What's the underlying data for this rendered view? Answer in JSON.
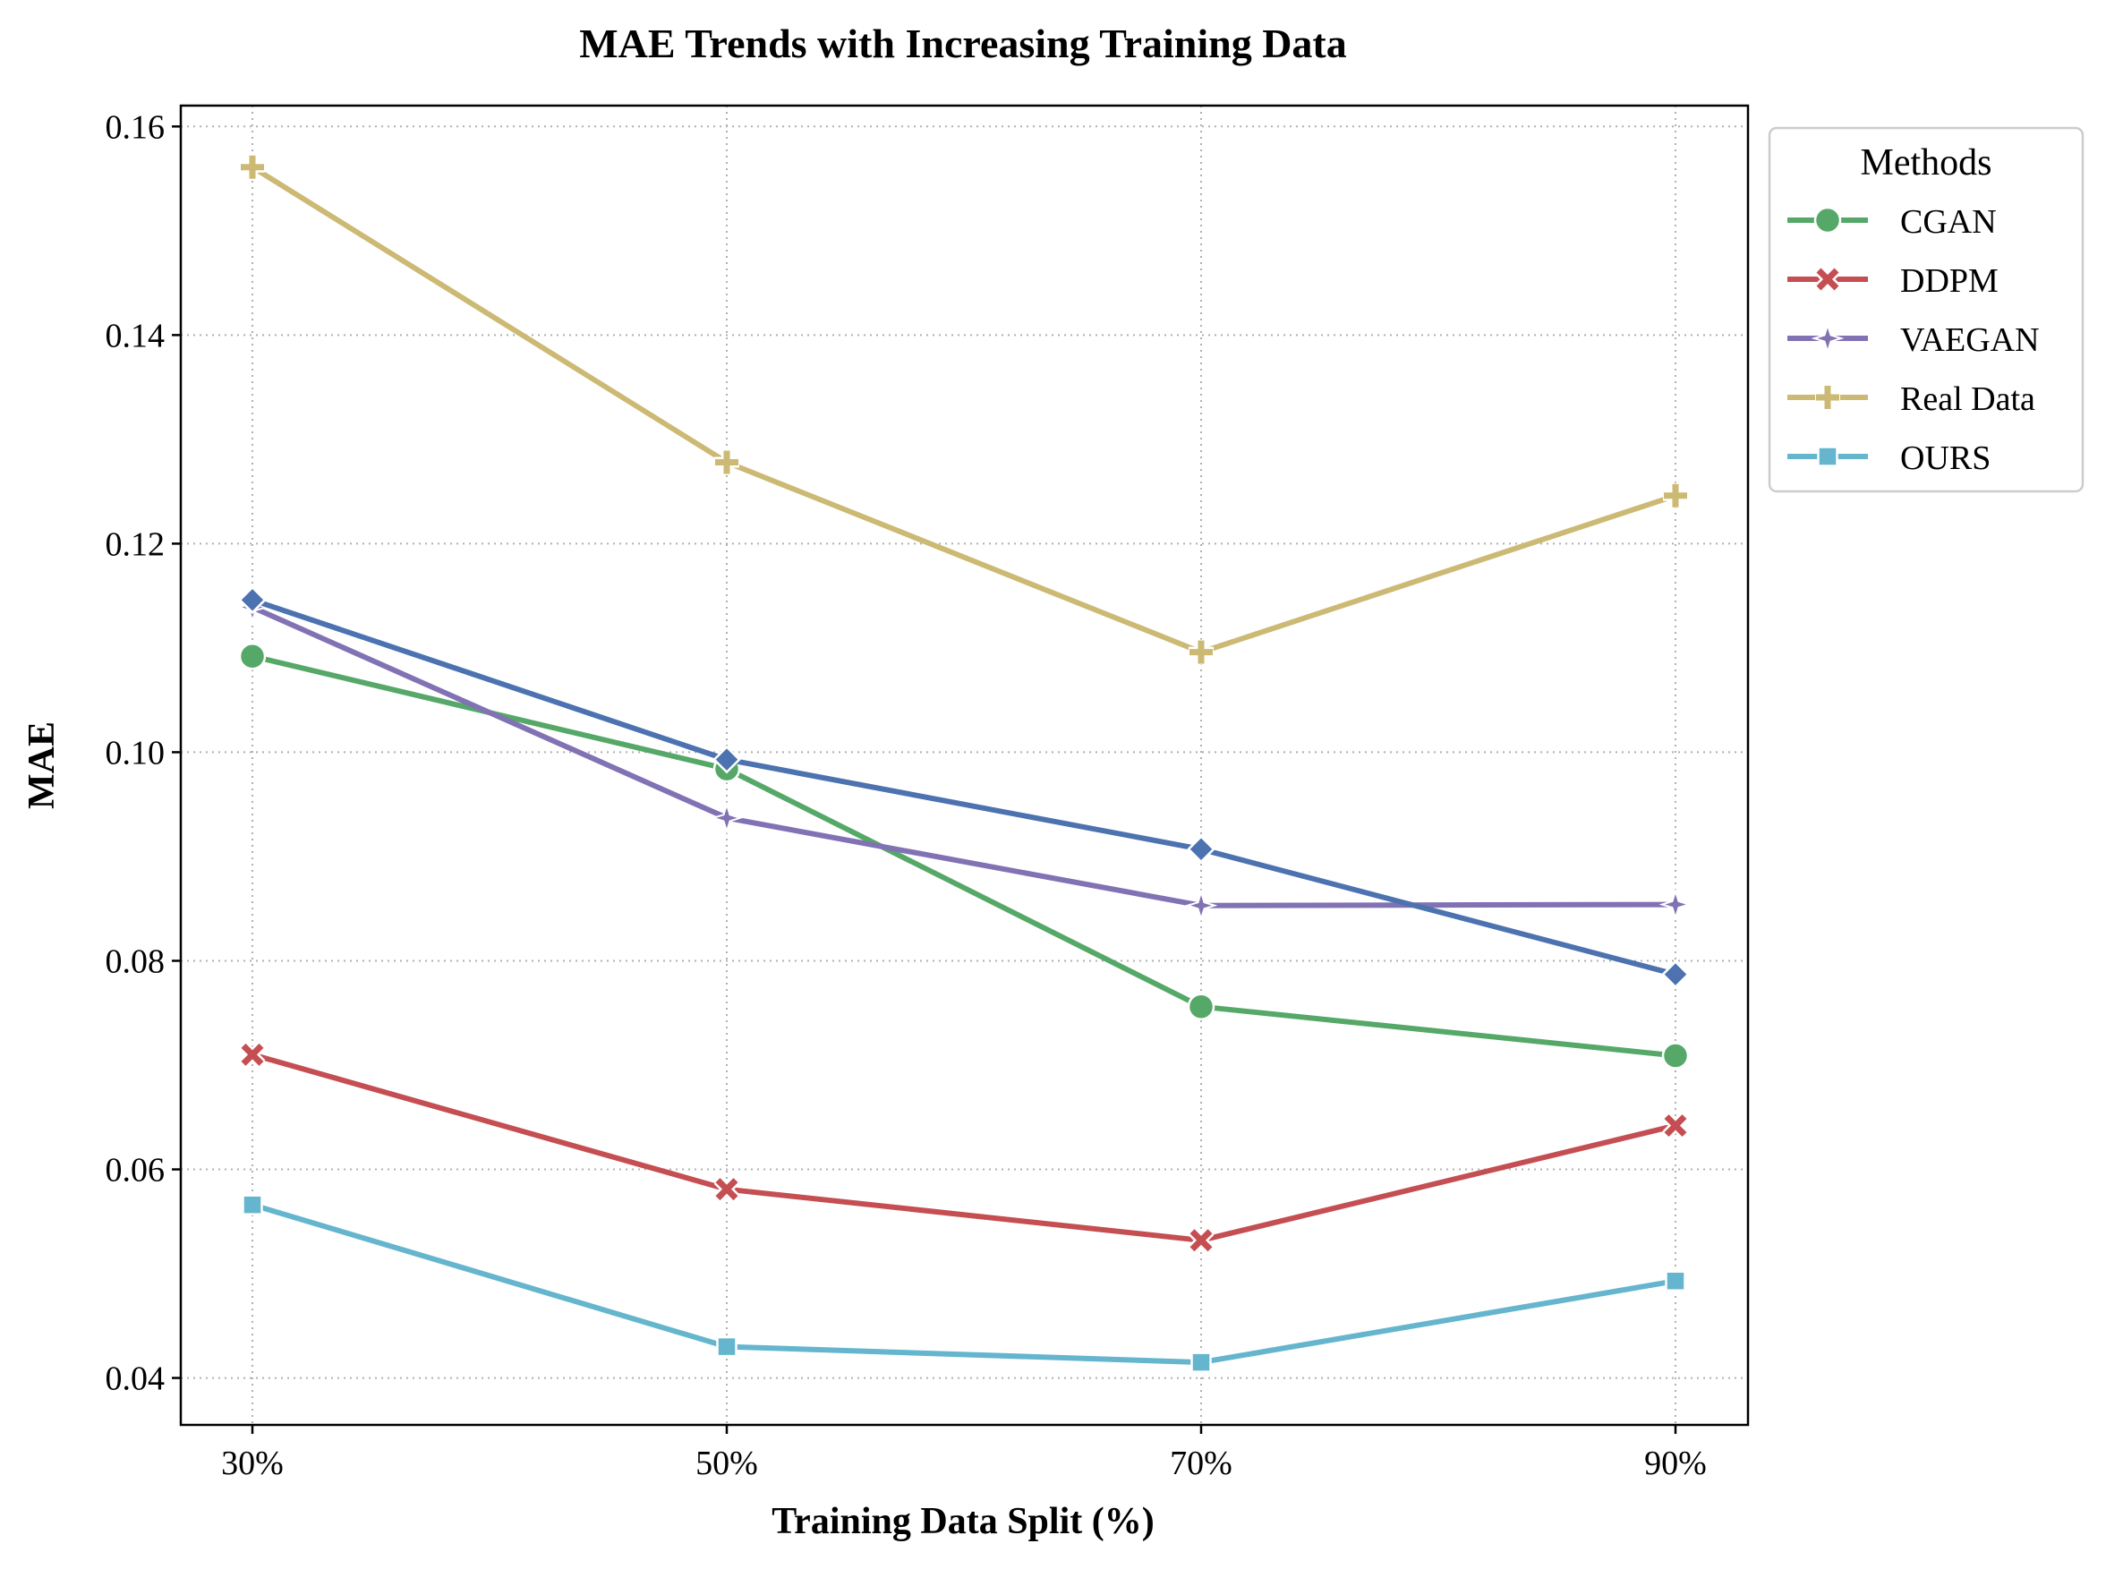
{
  "chart_data": {
    "type": "line",
    "title": "MAE Trends with Increasing Training Data",
    "xlabel": "Training Data Split (%)",
    "ylabel": "MAE",
    "categories": [
      "30%",
      "50%",
      "70%",
      "90%"
    ],
    "ylim": [
      0.0355,
      0.162
    ],
    "yticks": [
      0.04,
      0.06,
      0.08,
      0.1,
      0.12,
      0.14,
      0.16
    ],
    "ytick_labels": [
      "0.04",
      "0.06",
      "0.08",
      "0.10",
      "0.12",
      "0.14",
      "0.16"
    ],
    "grid": true,
    "legend": {
      "title": "Methods",
      "position": "outside-top-right"
    },
    "series": [
      {
        "name": "CGAN",
        "color": "#55a868",
        "marker": "circle",
        "values": [
          0.1092,
          0.0984,
          0.0756,
          0.0709
        ],
        "in_legend": true
      },
      {
        "name": "DDPM",
        "color": "#c44e52",
        "marker": "x",
        "values": [
          0.071,
          0.0581,
          0.0532,
          0.0642
        ],
        "in_legend": true
      },
      {
        "name": "VAEGAN",
        "color": "#8172b3",
        "marker": "star",
        "values": [
          0.1139,
          0.0937,
          0.0853,
          0.0854
        ],
        "in_legend": true
      },
      {
        "name": "Real Data",
        "color": "#ccb974",
        "marker": "plus",
        "values": [
          0.1561,
          0.1278,
          0.1096,
          0.1246
        ],
        "in_legend": true
      },
      {
        "name": "OURS",
        "color": "#64b5cd",
        "marker": "square",
        "values": [
          0.0566,
          0.043,
          0.0415,
          0.0493
        ],
        "in_legend": true
      },
      {
        "name": "",
        "color": "#4c72b0",
        "marker": "diamond",
        "values": [
          0.1146,
          0.0993,
          0.0907,
          0.0787
        ],
        "in_legend": false
      }
    ]
  }
}
